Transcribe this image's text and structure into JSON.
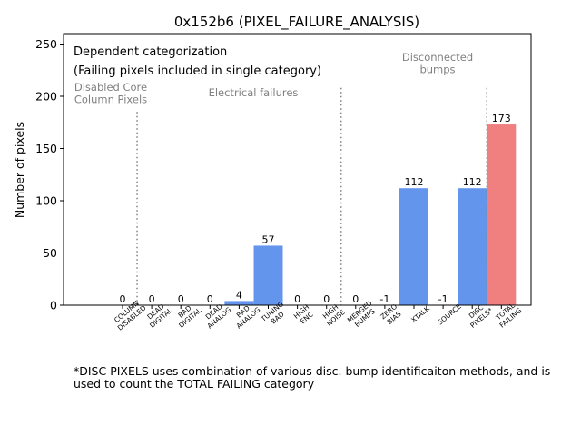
{
  "chart_data": {
    "type": "bar",
    "title": "0x152b6 (PIXEL_FAILURE_ANALYSIS)",
    "ylabel": "Number of pixels",
    "xlabel": "",
    "ylim": [
      0,
      260
    ],
    "yticks": [
      0,
      50,
      100,
      150,
      200,
      250
    ],
    "grid": false,
    "categories": [
      "COLUMN\nDISABLED",
      "DEAD\nDIGITAL",
      "BAD\nDIGITAL",
      "DEAD\nANALOG",
      "BAD\nANALOG",
      "TUNING\nBAD",
      "HIGH\nENC",
      "HIGH\nNOISE",
      "MERGED\nBUMPS",
      "ZERO\nBIAS",
      "XTALK",
      "SOURCE",
      "DISC\nPIXELS*",
      "TOTAL\nFAILING"
    ],
    "values": [
      0,
      0,
      0,
      0,
      4,
      57,
      0,
      0,
      0,
      -1,
      112,
      -1,
      112,
      173
    ],
    "value_labels": [
      "0",
      "0",
      "0",
      "0",
      "4",
      "57",
      "0",
      "0",
      "0",
      "-1",
      "112",
      "-1",
      "112",
      "173"
    ],
    "bar_color": "#6495ED",
    "total_color": "#F08080",
    "separator_color": "#808080",
    "annotations": {
      "main_line1": "Dependent categorization",
      "main_line2": "(Failing pixels included in single category)",
      "group_disabled": "Disabled Core\nColumn Pixels",
      "group_electrical": "Electrical failures",
      "group_disconnected": "Disconnected\nbumps"
    },
    "footnote": "*DISC PIXELS uses combination of various disc. bump identificaiton methods, and is used to count the TOTAL FAILING category"
  }
}
